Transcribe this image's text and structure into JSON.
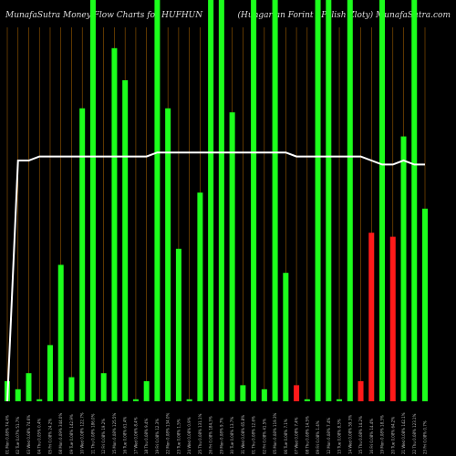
{
  "chart_data": {
    "type": "bar",
    "title_left": "MunafaSutra  Money Flow  Charts for HUFHUN",
    "title_right": "(Hungarian  Forint / Polish Zloty) MunafaSutra.com",
    "colors": {
      "up": "#1cff1c",
      "down": "#ff1a1a",
      "line": "#ffffff",
      "grid": "#9a5a00",
      "background": "#000000"
    },
    "grid": true,
    "ylim": [
      0,
      100
    ],
    "categories": [
      "01 Mon 0.08% 74.4%",
      "02 Tue 0.07% 51.7%",
      "03 Wed 0.08% 74.6%",
      "04 Thu 0.05% 0.4%",
      "05 Fri 0.08% 24.2%",
      "08 Mon 0.09% 344.0%",
      "09 Tue 0.08% 142.9%",
      "10 Wed 0.08% 122.7%",
      "11 Thu 0.08% 186.0%",
      "12 Fri 0.08% 19.2%",
      "15 Mon 0.08% 125.5%",
      "16 Tue 0.08% 61.4%",
      "17 Wed 0.06% 8.4%",
      "18 Thu 0.08% 9.4%",
      "19 Fri 0.08% 12.3%",
      "22 Mon 0.08% 134.0%",
      "23 Tue 0.08% 1.5%",
      "24 Wed 0.08% 0.9%",
      "25 Thu 0.08% 131.1%",
      "26 Fri 0.08% 184.3%",
      "29 Mon 0.08% 9.7%",
      "30 Tue 0.08% 13.7%",
      "31 Wed 0.08% 65.8%",
      "01 Thu 0.08% 12.6%",
      "02 Fri 0.08% 41.5%",
      "05 Mon 0.08% 119.3%",
      "06 Tue 0.08% 7.1%",
      "07 Wed 0.08% 7.4%",
      "08 Thu 0.08% 14.5%",
      "09 Fri 0.08% 1.4%",
      "12 Mon 0.08% 7.4%",
      "13 Tue 0.08% 8.3%",
      "14 Wed 0.08% 59.3%",
      "15 Thu 0.08% 14.2%",
      "16 Fri 0.08% 14.4%",
      "19 Mon 0.08% 18.3%",
      "20 Tue 0.08% 64.2%",
      "21 Wed 0.08% 142.1%",
      "22 Thu 0.08% 123.1%",
      "23 Fri 0.08% 0.7%"
    ],
    "series": [
      {
        "type": "bar",
        "values": [
          5,
          3,
          7,
          0.5,
          14,
          34,
          6,
          73,
          100,
          7,
          88,
          80,
          0.5,
          5,
          100,
          73,
          38,
          0.5,
          52,
          100,
          100,
          72,
          4,
          100,
          3,
          100,
          32,
          4,
          0.5,
          100,
          100,
          0.5,
          100,
          5,
          42,
          100,
          41,
          66,
          100,
          48
        ]
      },
      {
        "type": "line",
        "values": [
          0,
          60,
          60,
          61,
          61,
          61,
          61,
          61,
          61,
          61,
          61,
          61,
          61,
          61,
          62,
          62,
          62,
          62,
          62,
          62,
          62,
          62,
          62,
          62,
          62,
          62,
          62,
          61,
          61,
          61,
          61,
          61,
          61,
          61,
          60,
          59,
          59,
          60,
          59,
          59
        ]
      }
    ],
    "bar_colors": [
      "up",
      "up",
      "up",
      "up",
      "up",
      "up",
      "up",
      "up",
      "up",
      "up",
      "up",
      "up",
      "up",
      "up",
      "up",
      "up",
      "up",
      "up",
      "up",
      "up",
      "up",
      "up",
      "up",
      "up",
      "up",
      "up",
      "up",
      "down",
      "up",
      "up",
      "up",
      "up",
      "up",
      "down",
      "down",
      "up",
      "down",
      "up",
      "up",
      "up"
    ]
  }
}
